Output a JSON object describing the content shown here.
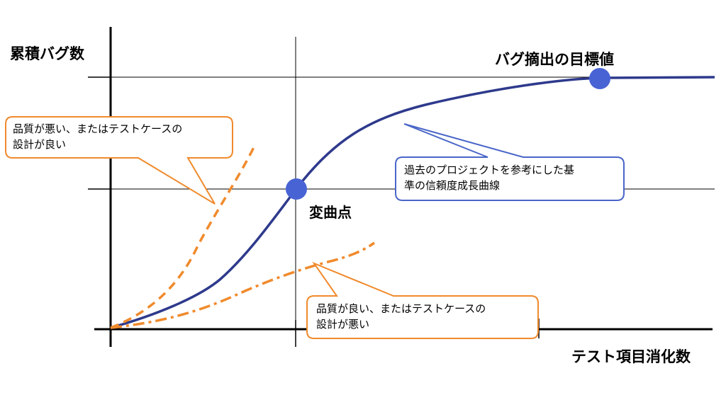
{
  "axes": {
    "y_label": "累積バグ数",
    "x_label": "テスト項目消化数"
  },
  "labels": {
    "target": "バグ摘出の目標値",
    "inflection": "変曲点"
  },
  "callouts": {
    "bad_quality": "品質が悪い、またはテストケースの\n設計が良い",
    "good_quality": "品質が良い、またはテストケースの\n設計が悪い",
    "reference": "過去のプロジェクトを参考にした基\n準の信頼度成長曲線"
  },
  "colors": {
    "curve": "#2e3a8c",
    "marker": "#4863d4",
    "orange": "#f08a2c",
    "reference_border": "#4a66c8",
    "axis": "#000000",
    "grid": "#000000"
  }
}
